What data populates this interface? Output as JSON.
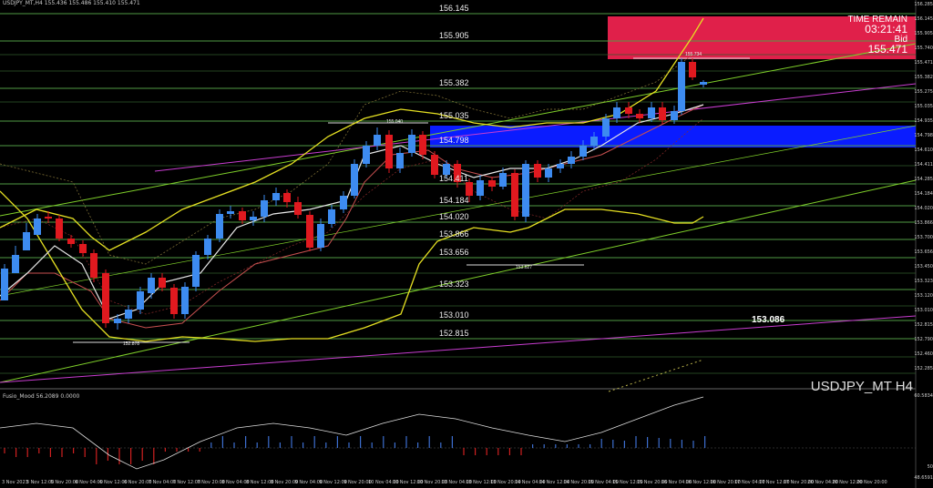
{
  "header": {
    "symbol_line": "USDJPY_MT,H4  155.436 155.486 155.410 155.471"
  },
  "indicator_header": {
    "text": "Fusio_Mood 56.2089 0.0000"
  },
  "watermark": "USDJPY_MT H4",
  "time_remain": {
    "label": "TIME REMAIN",
    "value": "03:21:41",
    "bid_label": "Bid",
    "bid_value": "155.471"
  },
  "annotation": "153.086",
  "levels": [
    "156.145",
    "155.905",
    "155.382",
    "155.035",
    "154.798",
    "154.411",
    "154.184",
    "154.020",
    "153.866",
    "153.656",
    "153.323",
    "153.010",
    "152.815"
  ],
  "small_labels": {
    "high": "155.734",
    "mid": "155.040",
    "low": "153.627",
    "low2": "152.878"
  },
  "axis_prices": [
    "156.285",
    "156.145",
    "155.905",
    "155.740",
    "155.471",
    "155.382",
    "155.275",
    "155.035",
    "154.935",
    "154.798",
    "154.610",
    "154.411",
    "154.285",
    "154.184",
    "154.020",
    "153.866",
    "153.700",
    "153.656",
    "153.450",
    "153.323",
    "153.120",
    "153.010",
    "152.815",
    "152.790",
    "152.460",
    "152.285"
  ],
  "axis_indicator": [
    "60.5834",
    "50",
    "48.6591"
  ],
  "dates": [
    "3 Nov 2023",
    "3 Nov 12:00",
    "5 Nov 20:00",
    "6 Nov 04:00",
    "6 Nov 12:00",
    "6 Nov 20:00",
    "7 Nov 04:00",
    "7 Nov 12:00",
    "7 Nov 20:00",
    "8 Nov 04:00",
    "8 Nov 12:00",
    "8 Nov 20:00",
    "9 Nov 04:00",
    "9 Nov 12:00",
    "9 Nov 20:00",
    "10 Nov 04:00",
    "10 Nov 12:00",
    "10 Nov 20:00",
    "13 Nov 04:00",
    "13 Nov 12:00",
    "13 Nov 20:00",
    "14 Nov 04:00",
    "14 Nov 12:00",
    "14 Nov 20:00",
    "15 Nov 04:00",
    "15 Nov 12:00",
    "15 Nov 20:00",
    "16 Nov 04:00",
    "16 Nov 12:00",
    "16 Nov 20:00",
    "17 Nov 04:00",
    "17 Nov 12:00",
    "17 Nov 20:00",
    "20 Nov 04:00",
    "20 Nov 12:00",
    "20 Nov 20:00"
  ],
  "colors": {
    "bull": "#3d8bf0",
    "bear": "#e0191f",
    "zone_red": "#e0204a",
    "zone_blue": "#0a1cff",
    "level": "#4f9a44",
    "sma_yellow": "#e5e022",
    "ma_white": "#e8e8e8",
    "ma_red": "#c85050",
    "trend_purple": "#c83dd0",
    "trend_green": "#7fd02a"
  }
}
